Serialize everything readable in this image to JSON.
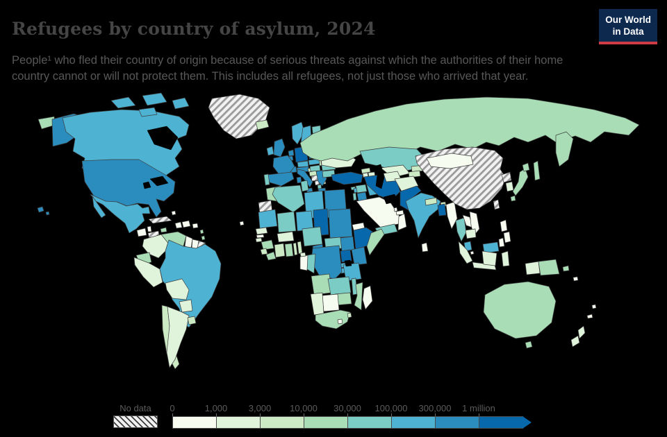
{
  "header": {
    "title": "Refugees by country of asylum, 2024",
    "subtitle": "People¹ who fled their country of origin because of serious threats against which the authorities of their home country cannot or will not protect them. This includes all refugees, not just those who arrived that year.",
    "logo": {
      "line1": "Our World",
      "line2": "in Data",
      "background": "#0d2a4e",
      "accent": "#cf3b45"
    }
  },
  "legend": {
    "no_data_label": "No data",
    "ticks": [
      "0",
      "1,000",
      "3,000",
      "10,000",
      "30,000",
      "100,000",
      "300,000",
      "1 million"
    ],
    "position": "bottom"
  },
  "chart_data": {
    "type": "heatmap",
    "subtype": "world-choropleth",
    "title": "Refugees by country of asylum, 2024",
    "year": 2024,
    "unit": "number of refugees hosted",
    "color_scheme": "GnBu",
    "no_data_style": "diagonal-hatch",
    "bins": [
      {
        "label": "0 – 1,000",
        "color": "#f7fcf0"
      },
      {
        "label": "1,000 – 3,000",
        "color": "#e0f3db"
      },
      {
        "label": "3,000 – 10,000",
        "color": "#ccebc5"
      },
      {
        "label": "10,000 – 30,000",
        "color": "#a8ddb5"
      },
      {
        "label": "30,000 – 100,000",
        "color": "#7bccc4"
      },
      {
        "label": "100,000 – 300,000",
        "color": "#4eb3d3"
      },
      {
        "label": "300,000 – 1 million",
        "color": "#2b8cbe"
      },
      {
        "label": "1 million +",
        "color": "#0868ac"
      }
    ],
    "countries": [
      {
        "key": "usa",
        "name": "United States",
        "bin": 6
      },
      {
        "key": "canada",
        "name": "Canada",
        "bin": 5
      },
      {
        "key": "greenland",
        "name": "Greenland",
        "bin": "no_data"
      },
      {
        "key": "iceland",
        "name": "Iceland",
        "bin": 2
      },
      {
        "key": "mexico",
        "name": "Mexico",
        "bin": 5
      },
      {
        "key": "guatemala",
        "name": "Guatemala",
        "bin": 0
      },
      {
        "key": "belize",
        "name": "Belize",
        "bin": 0
      },
      {
        "key": "honduras",
        "name": "Honduras",
        "bin": "no_data"
      },
      {
        "key": "nicaragua",
        "name": "Nicaragua",
        "bin": "no_data"
      },
      {
        "key": "costa-rica",
        "name": "Costa Rica",
        "bin": 4
      },
      {
        "key": "panama",
        "name": "Panama",
        "bin": 5
      },
      {
        "key": "cuba",
        "name": "Cuba",
        "bin": "no_data"
      },
      {
        "key": "jamaica",
        "name": "Jamaica",
        "bin": 3
      },
      {
        "key": "haiti",
        "name": "Haiti",
        "bin": 0
      },
      {
        "key": "dominican-republic",
        "name": "Dominican Republic",
        "bin": 0
      },
      {
        "key": "puerto-rico",
        "name": "Puerto Rico",
        "bin": 0
      },
      {
        "key": "bahamas",
        "name": "Bahamas",
        "bin": 0
      },
      {
        "key": "lesser-antilles",
        "name": "Lesser Antilles",
        "bin": 3
      },
      {
        "key": "trinidad-and-tobago",
        "name": "Trinidad and Tobago",
        "bin": 3
      },
      {
        "key": "cape-verde",
        "name": "Cape Verde",
        "bin": 0
      },
      {
        "key": "colombia",
        "name": "Colombia",
        "bin": 1
      },
      {
        "key": "venezuela",
        "name": "Venezuela",
        "bin": 3
      },
      {
        "key": "guyana",
        "name": "Guyana",
        "bin": 0
      },
      {
        "key": "suriname",
        "name": "Suriname",
        "bin": 0
      },
      {
        "key": "french-guiana",
        "name": "French Guiana",
        "bin": "no_data"
      },
      {
        "key": "ecuador",
        "name": "Ecuador",
        "bin": 3
      },
      {
        "key": "peru",
        "name": "Peru",
        "bin": 1
      },
      {
        "key": "brazil",
        "name": "Brazil",
        "bin": 5
      },
      {
        "key": "bolivia",
        "name": "Bolivia",
        "bin": 1
      },
      {
        "key": "paraguay",
        "name": "Paraguay",
        "bin": 1
      },
      {
        "key": "chile",
        "name": "Chile",
        "bin": 2
      },
      {
        "key": "argentina",
        "name": "Argentina",
        "bin": 1
      },
      {
        "key": "uruguay",
        "name": "Uruguay",
        "bin": 2
      },
      {
        "key": "united-kingdom",
        "name": "United Kingdom",
        "bin": 6
      },
      {
        "key": "ireland",
        "name": "Ireland",
        "bin": 5
      },
      {
        "key": "norway",
        "name": "Norway",
        "bin": 5
      },
      {
        "key": "sweden",
        "name": "Sweden",
        "bin": 5
      },
      {
        "key": "finland",
        "name": "Finland",
        "bin": 4
      },
      {
        "key": "denmark",
        "name": "Denmark",
        "bin": 4
      },
      {
        "key": "estonia",
        "name": "Estonia",
        "bin": 4
      },
      {
        "key": "latvia",
        "name": "Latvia",
        "bin": 4
      },
      {
        "key": "lithuania",
        "name": "Lithuania",
        "bin": 5
      },
      {
        "key": "netherlands",
        "name": "Netherlands",
        "bin": 6
      },
      {
        "key": "belgium",
        "name": "Belgium",
        "bin": 6
      },
      {
        "key": "germany",
        "name": "Germany",
        "bin": 7
      },
      {
        "key": "poland",
        "name": "Poland",
        "bin": 7
      },
      {
        "key": "czechia",
        "name": "Czechia",
        "bin": 5
      },
      {
        "key": "slovakia",
        "name": "Slovakia",
        "bin": 5
      },
      {
        "key": "austria",
        "name": "Austria",
        "bin": 6
      },
      {
        "key": "switzerland",
        "name": "Switzerland",
        "bin": 6
      },
      {
        "key": "france",
        "name": "France",
        "bin": 6
      },
      {
        "key": "spain",
        "name": "Spain",
        "bin": 6
      },
      {
        "key": "portugal",
        "name": "Portugal",
        "bin": 4
      },
      {
        "key": "italy",
        "name": "Italy",
        "bin": 6
      },
      {
        "key": "slovenia",
        "name": "Slovenia",
        "bin": 2
      },
      {
        "key": "croatia",
        "name": "Croatia",
        "bin": 2
      },
      {
        "key": "bosnia-herzegovina",
        "name": "Bosnia and Herzegovina",
        "bin": "no_data"
      },
      {
        "key": "serbia",
        "name": "Serbia",
        "bin": 2
      },
      {
        "key": "montenegro",
        "name": "Montenegro",
        "bin": "no_data"
      },
      {
        "key": "albania",
        "name": "Albania",
        "bin": 4
      },
      {
        "key": "north-macedonia",
        "name": "North Macedonia",
        "bin": 1
      },
      {
        "key": "greece",
        "name": "Greece",
        "bin": 6
      },
      {
        "key": "hungary",
        "name": "Hungary",
        "bin": 4
      },
      {
        "key": "romania",
        "name": "Romania",
        "bin": 4
      },
      {
        "key": "bulgaria",
        "name": "Bulgaria",
        "bin": 4
      },
      {
        "key": "moldova",
        "name": "Moldova",
        "bin": 3
      },
      {
        "key": "ukraine",
        "name": "Ukraine",
        "bin": 1
      },
      {
        "key": "belarus",
        "name": "Belarus",
        "bin": 2
      },
      {
        "key": "russia",
        "name": "Russia",
        "bin": 3
      },
      {
        "key": "turkey",
        "name": "Turkey",
        "bin": 7
      },
      {
        "key": "cyprus",
        "name": "Cyprus",
        "bin": 4
      },
      {
        "key": "georgia",
        "name": "Georgia",
        "bin": 2
      },
      {
        "key": "armenia",
        "name": "Armenia",
        "bin": 1
      },
      {
        "key": "azerbaijan",
        "name": "Azerbaijan",
        "bin": 1
      },
      {
        "key": "syria",
        "name": "Syria",
        "bin": 4
      },
      {
        "key": "lebanon",
        "name": "Lebanon",
        "bin": 5
      },
      {
        "key": "israel",
        "name": "Israel",
        "bin": 4
      },
      {
        "key": "jordan",
        "name": "Jordan",
        "bin": 6
      },
      {
        "key": "iraq",
        "name": "Iraq",
        "bin": 5
      },
      {
        "key": "kuwait",
        "name": "Kuwait",
        "bin": 0
      },
      {
        "key": "saudi-arabia",
        "name": "Saudi Arabia",
        "bin": 0
      },
      {
        "key": "yemen",
        "name": "Yemen",
        "bin": 4
      },
      {
        "key": "oman",
        "name": "Oman",
        "bin": 0
      },
      {
        "key": "uae",
        "name": "United Arab Emirates",
        "bin": 0
      },
      {
        "key": "qatar",
        "name": "Qatar",
        "bin": 0
      },
      {
        "key": "iran",
        "name": "Iran",
        "bin": 7
      },
      {
        "key": "kazakhstan",
        "name": "Kazakhstan",
        "bin": 4
      },
      {
        "key": "uzbekistan",
        "name": "Uzbekistan",
        "bin": 1
      },
      {
        "key": "turkmenistan",
        "name": "Turkmenistan",
        "bin": 1
      },
      {
        "key": "kyrgyzstan",
        "name": "Kyrgyzstan",
        "bin": 2
      },
      {
        "key": "tajikistan",
        "name": "Tajikistan",
        "bin": 2
      },
      {
        "key": "afghanistan",
        "name": "Afghanistan",
        "bin": 1
      },
      {
        "key": "pakistan",
        "name": "Pakistan",
        "bin": 7
      },
      {
        "key": "india",
        "name": "India",
        "bin": 5
      },
      {
        "key": "nepal",
        "name": "Nepal",
        "bin": 2
      },
      {
        "key": "bhutan",
        "name": "Bhutan",
        "bin": 2
      },
      {
        "key": "bangladesh",
        "name": "Bangladesh",
        "bin": 7
      },
      {
        "key": "sri-lanka",
        "name": "Sri Lanka",
        "bin": 0
      },
      {
        "key": "myanmar",
        "name": "Myanmar",
        "bin": 0
      },
      {
        "key": "china",
        "name": "China",
        "bin": "no_data"
      },
      {
        "key": "mongolia",
        "name": "Mongolia",
        "bin": 0
      },
      {
        "key": "north-korea",
        "name": "North Korea",
        "bin": "no_data"
      },
      {
        "key": "south-korea",
        "name": "South Korea",
        "bin": 1
      },
      {
        "key": "japan",
        "name": "Japan",
        "bin": 3
      },
      {
        "key": "taiwan",
        "name": "Taiwan",
        "bin": "no_data"
      },
      {
        "key": "thailand",
        "name": "Thailand",
        "bin": 4
      },
      {
        "key": "laos",
        "name": "Laos",
        "bin": 0
      },
      {
        "key": "vietnam",
        "name": "Vietnam",
        "bin": 0
      },
      {
        "key": "cambodia",
        "name": "Cambodia",
        "bin": 1
      },
      {
        "key": "malaysia",
        "name": "Malaysia",
        "bin": 5
      },
      {
        "key": "singapore",
        "name": "Singapore",
        "bin": 0
      },
      {
        "key": "indonesia",
        "name": "Indonesia",
        "bin": 1
      },
      {
        "key": "philippines",
        "name": "Philippines",
        "bin": 0
      },
      {
        "key": "papua-new-guinea",
        "name": "Papua New Guinea",
        "bin": 3
      },
      {
        "key": "morocco",
        "name": "Morocco",
        "bin": 3
      },
      {
        "key": "western-sahara",
        "name": "Western Sahara",
        "bin": "no_data"
      },
      {
        "key": "algeria",
        "name": "Algeria",
        "bin": 4
      },
      {
        "key": "tunisia",
        "name": "Tunisia",
        "bin": 4
      },
      {
        "key": "libya",
        "name": "Libya",
        "bin": 5
      },
      {
        "key": "egypt",
        "name": "Egypt",
        "bin": 6
      },
      {
        "key": "mauritania",
        "name": "Mauritania",
        "bin": 5
      },
      {
        "key": "mali",
        "name": "Mali",
        "bin": 4
      },
      {
        "key": "niger",
        "name": "Niger",
        "bin": 5
      },
      {
        "key": "chad",
        "name": "Chad",
        "bin": 7
      },
      {
        "key": "sudan",
        "name": "Sudan",
        "bin": 6
      },
      {
        "key": "eritrea",
        "name": "Eritrea",
        "bin": 0
      },
      {
        "key": "djibouti",
        "name": "Djibouti",
        "bin": 4
      },
      {
        "key": "senegal",
        "name": "Senegal",
        "bin": 1
      },
      {
        "key": "gambia",
        "name": "Gambia",
        "bin": 0
      },
      {
        "key": "guinea-bissau",
        "name": "Guinea-Bissau",
        "bin": 1
      },
      {
        "key": "guinea",
        "name": "Guinea",
        "bin": 3
      },
      {
        "key": "sierra-leone",
        "name": "Sierra Leone",
        "bin": 2
      },
      {
        "key": "liberia",
        "name": "Liberia",
        "bin": 3
      },
      {
        "key": "ivory-coast",
        "name": "Cote d'Ivoire",
        "bin": 2
      },
      {
        "key": "ghana",
        "name": "Ghana",
        "bin": 3
      },
      {
        "key": "togo",
        "name": "Togo",
        "bin": 2
      },
      {
        "key": "benin",
        "name": "Benin",
        "bin": 2
      },
      {
        "key": "burkina-faso",
        "name": "Burkina Faso",
        "bin": 1
      },
      {
        "key": "nigeria",
        "name": "Nigeria",
        "bin": 4
      },
      {
        "key": "cameroon",
        "name": "Cameroon",
        "bin": 6
      },
      {
        "key": "central-african-republic",
        "name": "Central African Republic",
        "bin": 4
      },
      {
        "key": "south-sudan",
        "name": "South Sudan",
        "bin": 6
      },
      {
        "key": "ethiopia",
        "name": "Ethiopia",
        "bin": 7
      },
      {
        "key": "somalia",
        "name": "Somalia",
        "bin": 3
      },
      {
        "key": "kenya",
        "name": "Kenya",
        "bin": 6
      },
      {
        "key": "uganda",
        "name": "Uganda",
        "bin": 7
      },
      {
        "key": "rwanda",
        "name": "Rwanda",
        "bin": 5
      },
      {
        "key": "burundi",
        "name": "Burundi",
        "bin": 5
      },
      {
        "key": "dr-congo",
        "name": "Democratic Republic of Congo",
        "bin": 6
      },
      {
        "key": "congo",
        "name": "Congo",
        "bin": 4
      },
      {
        "key": "gabon",
        "name": "Gabon",
        "bin": 0
      },
      {
        "key": "equatorial-guinea",
        "name": "Equatorial Guinea",
        "bin": 1
      },
      {
        "key": "tanzania",
        "name": "Tanzania",
        "bin": 5
      },
      {
        "key": "angola",
        "name": "Angola",
        "bin": 3
      },
      {
        "key": "zambia",
        "name": "Zambia",
        "bin": 4
      },
      {
        "key": "malawi",
        "name": "Malawi",
        "bin": 4
      },
      {
        "key": "mozambique",
        "name": "Mozambique",
        "bin": 3
      },
      {
        "key": "zimbabwe",
        "name": "Zimbabwe",
        "bin": 3
      },
      {
        "key": "botswana",
        "name": "Botswana",
        "bin": 0
      },
      {
        "key": "namibia",
        "name": "Namibia",
        "bin": 1
      },
      {
        "key": "south-africa",
        "name": "South Africa",
        "bin": 3
      },
      {
        "key": "lesotho",
        "name": "Lesotho",
        "bin": 0
      },
      {
        "key": "eswatini",
        "name": "Eswatini",
        "bin": 2
      },
      {
        "key": "madagascar",
        "name": "Madagascar",
        "bin": 0
      },
      {
        "key": "australia",
        "name": "Australia",
        "bin": 3
      },
      {
        "key": "new-zealand",
        "name": "New Zealand",
        "bin": 1
      },
      {
        "key": "fiji",
        "name": "Fiji",
        "bin": 0
      },
      {
        "key": "solomon-islands",
        "name": "Solomon Islands",
        "bin": 0
      },
      {
        "key": "new-caledonia",
        "name": "New Caledonia",
        "bin": 0
      }
    ]
  }
}
